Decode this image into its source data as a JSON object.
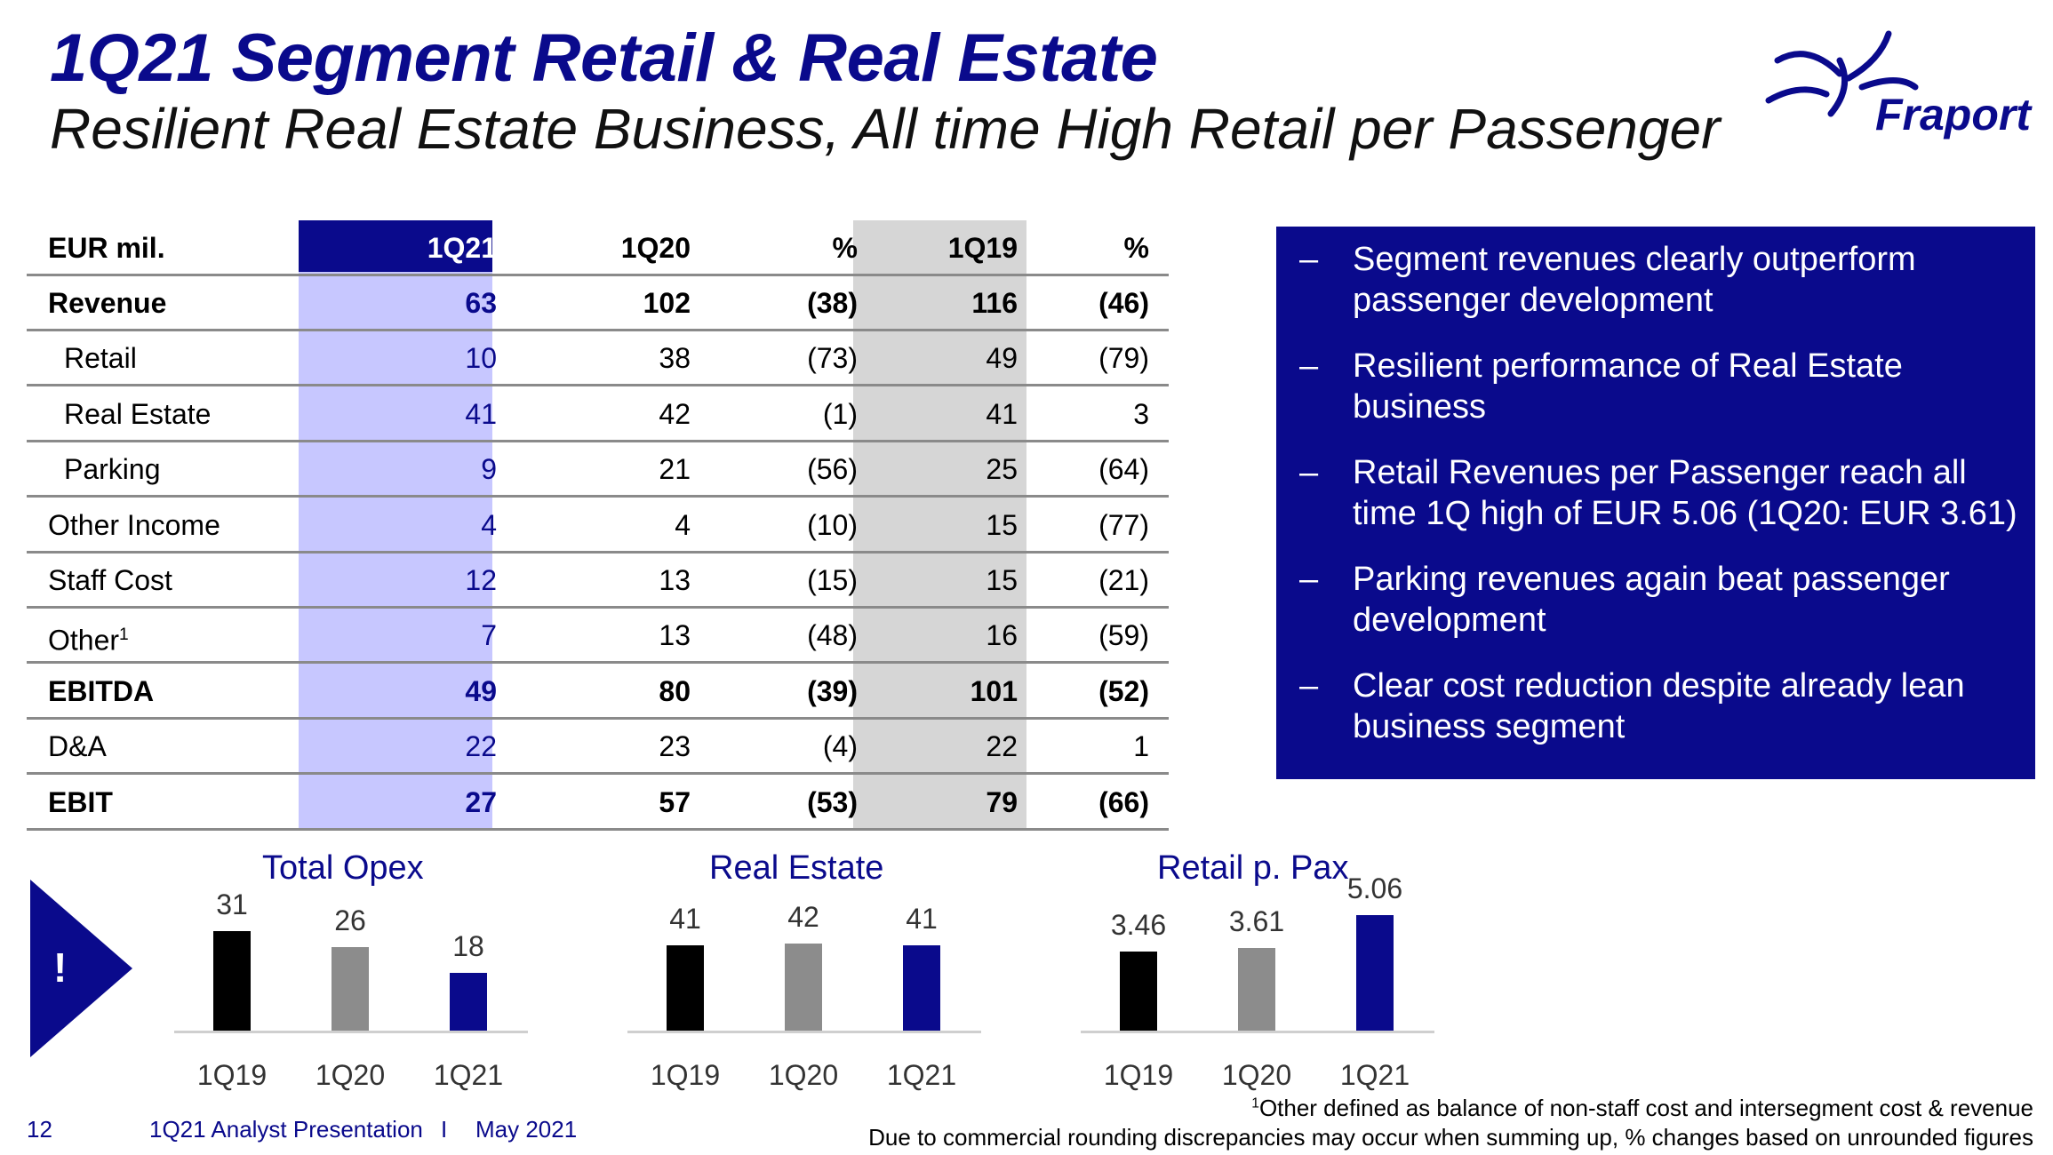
{
  "header": {
    "title": "1Q21 Segment Retail & Real Estate",
    "subtitle": "Resilient Real Estate Business, All time High Retail per Passenger",
    "logo_text": "Fraport"
  },
  "table": {
    "columns": [
      "EUR mil.",
      "1Q21",
      "1Q20",
      "%",
      "1Q19",
      "%"
    ],
    "rows": [
      {
        "label": "Revenue",
        "bold": true,
        "indent": false,
        "v1q21": "63",
        "v1q20": "102",
        "p1": "(38)",
        "v1q19": "116",
        "p2": "(46)"
      },
      {
        "label": "Retail",
        "bold": false,
        "indent": true,
        "v1q21": "10",
        "v1q20": "38",
        "p1": "(73)",
        "v1q19": "49",
        "p2": "(79)"
      },
      {
        "label": "Real Estate",
        "bold": false,
        "indent": true,
        "v1q21": "41",
        "v1q20": "42",
        "p1": "(1)",
        "v1q19": "41",
        "p2": "3"
      },
      {
        "label": "Parking",
        "bold": false,
        "indent": true,
        "v1q21": "9",
        "v1q20": "21",
        "p1": "(56)",
        "v1q19": "25",
        "p2": "(64)"
      },
      {
        "label": "Other Income",
        "bold": false,
        "indent": false,
        "v1q21": "4",
        "v1q20": "4",
        "p1": "(10)",
        "v1q19": "15",
        "p2": "(77)"
      },
      {
        "label": "Staff Cost",
        "bold": false,
        "indent": false,
        "v1q21": "12",
        "v1q20": "13",
        "p1": "(15)",
        "v1q19": "15",
        "p2": "(21)"
      },
      {
        "label": "Other",
        "sup": "1",
        "bold": false,
        "indent": false,
        "v1q21": "7",
        "v1q20": "13",
        "p1": "(48)",
        "v1q19": "16",
        "p2": "(59)"
      },
      {
        "label": "EBITDA",
        "bold": true,
        "indent": false,
        "v1q21": "49",
        "v1q20": "80",
        "p1": "(39)",
        "v1q19": "101",
        "p2": "(52)"
      },
      {
        "label": "D&A",
        "bold": false,
        "indent": false,
        "v1q21": "22",
        "v1q20": "23",
        "p1": "(4)",
        "v1q19": "22",
        "p2": "1"
      },
      {
        "label": "EBIT",
        "bold": true,
        "indent": false,
        "v1q21": "27",
        "v1q20": "57",
        "p1": "(53)",
        "v1q19": "79",
        "p2": "(66)"
      }
    ]
  },
  "bullets": [
    "Segment revenues clearly outperform passenger development",
    "Resilient performance of Real Estate business",
    "Retail Revenues per Passenger reach all time 1Q high of EUR 5.06 (1Q20: EUR 3.61)",
    "Parking revenues again beat passenger development",
    "Clear cost reduction despite already lean business segment"
  ],
  "bullet_dash": "–",
  "callout_icon": "!",
  "chart_data": [
    {
      "type": "bar",
      "title": "Total Opex",
      "categories": [
        "1Q19",
        "1Q20",
        "1Q21"
      ],
      "values": [
        31,
        26,
        18
      ],
      "labels": [
        "31",
        "26",
        "18"
      ],
      "colors": [
        "#000000",
        "#8c8c8c",
        "#0a0a8c"
      ]
    },
    {
      "type": "bar",
      "title": "Real Estate",
      "categories": [
        "1Q19",
        "1Q20",
        "1Q21"
      ],
      "values": [
        41,
        42,
        41
      ],
      "labels": [
        "41",
        "42",
        "41"
      ],
      "colors": [
        "#000000",
        "#8c8c8c",
        "#0a0a8c"
      ]
    },
    {
      "type": "bar",
      "title": "Retail p. Pax",
      "categories": [
        "1Q19",
        "1Q20",
        "1Q21"
      ],
      "values": [
        3.46,
        3.61,
        5.06
      ],
      "labels": [
        "3.46",
        "3.61",
        "5.06"
      ],
      "colors": [
        "#000000",
        "#8c8c8c",
        "#0a0a8c"
      ]
    }
  ],
  "footer": {
    "page_number": "12",
    "presentation": "1Q21 Analyst Presentation",
    "separator": "I",
    "date": "May 2021",
    "footnote_sup": "1",
    "footnote1": "Other defined as balance of non-staff cost and intersegment cost & revenue",
    "footnote2": "Due to commercial rounding discrepancies may occur when summing up, % changes based on unrounded figures"
  },
  "colors": {
    "brand": "#0a0a8c",
    "highlight_col": "#9999ff",
    "compare_col": "#d6d6d6"
  }
}
